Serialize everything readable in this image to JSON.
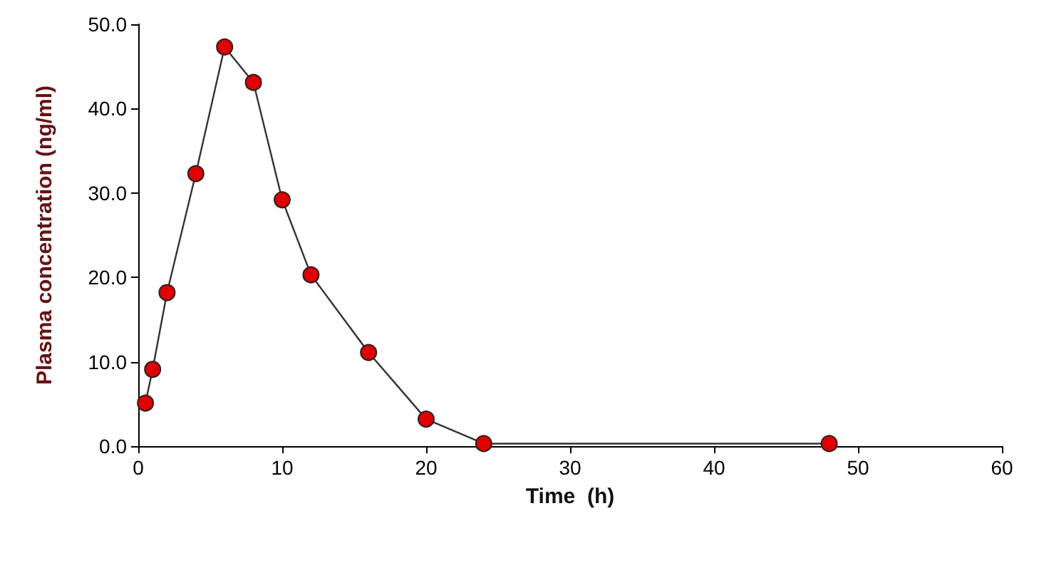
{
  "chart_data": {
    "type": "line",
    "xlabel": "Time  (h)",
    "ylabel": "Plasma concentration (ng/ml)",
    "x": [
      0.5,
      1,
      2,
      4,
      6,
      8,
      10,
      12,
      16,
      20,
      24,
      48
    ],
    "series": [
      {
        "color": "#e00000",
        "values": [
          5.1,
          9.1,
          18.2,
          32.3,
          47.3,
          43.1,
          29.2,
          20.3,
          11.1,
          3.2,
          0.3,
          0.3
        ]
      }
    ],
    "xlim": [
      0,
      60
    ],
    "xticks": [
      0,
      10,
      20,
      30,
      40,
      50,
      60
    ],
    "ylim": [
      0,
      50
    ],
    "yticks": [
      {
        "value": 0,
        "label": "0.0"
      },
      {
        "value": 10,
        "label": "10.0"
      },
      {
        "value": 20,
        "label": "20.0"
      },
      {
        "value": 30,
        "label": "30.0"
      },
      {
        "value": 40,
        "label": "40.0"
      },
      {
        "value": 50,
        "label": "50.0"
      }
    ],
    "grid": false,
    "marker": "circle",
    "line_style": "solid"
  }
}
